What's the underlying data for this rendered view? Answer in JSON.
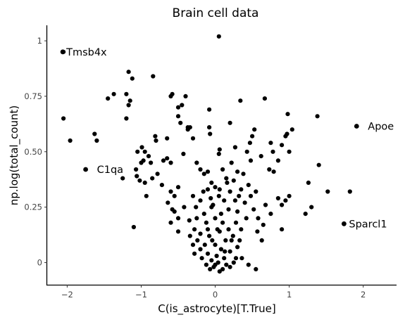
{
  "chart_data": {
    "type": "scatter",
    "title": "Brain cell data",
    "xlabel": "C(is_astrocyte)[T.True]",
    "ylabel": "np.log(total_count)",
    "xlim": [
      -2.27,
      2.45
    ],
    "ylim": [
      -0.1,
      1.07
    ],
    "x_ticks": [
      -2,
      -1,
      0,
      1,
      2
    ],
    "x_tick_labels": [
      "−2",
      "−1",
      "0",
      "1",
      "2"
    ],
    "y_ticks": [
      0,
      0.25,
      0.5,
      0.75,
      1
    ],
    "y_tick_labels": [
      "0",
      "0.25",
      "0.50",
      "0.75",
      "1"
    ],
    "grid": false,
    "series": [
      {
        "color": "#000000",
        "points": [
          [
            0.05,
            1.02
          ],
          [
            -2.05,
            0.95
          ],
          [
            -1.17,
            0.86
          ],
          [
            -1.12,
            0.83
          ],
          [
            -0.84,
            0.84
          ],
          [
            -1.37,
            0.76
          ],
          [
            -1.45,
            0.74
          ],
          [
            -1.2,
            0.76
          ],
          [
            -1.15,
            0.73
          ],
          [
            -1.17,
            0.71
          ],
          [
            -0.58,
            0.76
          ],
          [
            -0.6,
            0.75
          ],
          [
            -0.4,
            0.75
          ],
          [
            -0.45,
            0.71
          ],
          [
            -0.5,
            0.7
          ],
          [
            -0.5,
            0.66
          ],
          [
            -0.47,
            0.63
          ],
          [
            -0.37,
            0.61
          ],
          [
            -0.34,
            0.61
          ],
          [
            -1.2,
            0.65
          ],
          [
            -2.05,
            0.65
          ],
          [
            -0.81,
            0.57
          ],
          [
            -0.8,
            0.55
          ],
          [
            -0.65,
            0.56
          ],
          [
            -0.37,
            0.6
          ],
          [
            -0.3,
            0.56
          ],
          [
            -1.63,
            0.58
          ],
          [
            -1.6,
            0.55
          ],
          [
            -1.96,
            0.55
          ],
          [
            0.34,
            0.73
          ],
          [
            0.67,
            0.74
          ],
          [
            0.98,
            0.67
          ],
          [
            1.38,
            0.66
          ],
          [
            1.04,
            0.6
          ],
          [
            0.97,
            0.58
          ],
          [
            0.95,
            0.57
          ],
          [
            -0.08,
            0.69
          ],
          [
            -0.08,
            0.61
          ],
          [
            -0.07,
            0.58
          ],
          [
            0.2,
            0.63
          ],
          [
            0.53,
            0.6
          ],
          [
            0.5,
            0.57
          ],
          [
            0.47,
            0.54
          ],
          [
            0.27,
            0.52
          ],
          [
            0.75,
            0.54
          ],
          [
            0.9,
            0.53
          ],
          [
            0.78,
            0.5
          ],
          [
            1.0,
            0.5
          ],
          [
            1.4,
            0.44
          ],
          [
            -0.99,
            0.52
          ],
          [
            -0.95,
            0.5
          ],
          [
            -0.9,
            0.48
          ],
          [
            -1.05,
            0.5
          ],
          [
            -0.43,
            0.49
          ],
          [
            0.06,
            0.51
          ],
          [
            0.05,
            0.49
          ],
          [
            0.43,
            0.5
          ],
          [
            0.48,
            0.46
          ],
          [
            0.62,
            0.48
          ],
          [
            0.85,
            0.46
          ],
          [
            0.73,
            0.42
          ],
          [
            0.79,
            0.41
          ],
          [
            1.26,
            0.36
          ],
          [
            1.52,
            0.32
          ],
          [
            1.82,
            0.32
          ],
          [
            1.3,
            0.25
          ],
          [
            1.22,
            0.22
          ],
          [
            1.0,
            0.3
          ],
          [
            0.95,
            0.28
          ],
          [
            0.9,
            0.26
          ],
          [
            0.85,
            0.29
          ],
          [
            0.68,
            0.26
          ],
          [
            0.75,
            0.22
          ],
          [
            0.9,
            0.15
          ],
          [
            0.65,
            0.17
          ],
          [
            0.58,
            0.2
          ],
          [
            0.63,
            0.1
          ],
          [
            0.57,
            0.14
          ],
          [
            0.55,
            -0.03
          ],
          [
            0.45,
            -0.01
          ],
          [
            0.36,
            0.02
          ],
          [
            -0.97,
            0.46
          ],
          [
            -1.0,
            0.45
          ],
          [
            -0.87,
            0.45
          ],
          [
            -0.65,
            0.47
          ],
          [
            -0.6,
            0.45
          ],
          [
            -0.7,
            0.46
          ],
          [
            -1.07,
            0.42
          ],
          [
            -1.02,
            0.37
          ],
          [
            -0.95,
            0.36
          ],
          [
            -1.06,
            0.39
          ],
          [
            -1.25,
            0.38
          ],
          [
            -0.85,
            0.38
          ],
          [
            -0.78,
            0.4
          ],
          [
            -0.72,
            0.35
          ],
          [
            -0.5,
            0.34
          ],
          [
            -0.6,
            0.32
          ],
          [
            -0.55,
            0.3
          ],
          [
            -0.64,
            0.27
          ],
          [
            -0.58,
            0.24
          ],
          [
            -0.55,
            0.23
          ],
          [
            -0.5,
            0.2
          ],
          [
            -0.42,
            0.25
          ],
          [
            -0.35,
            0.19
          ],
          [
            -0.28,
            0.15
          ],
          [
            -0.34,
            0.12
          ],
          [
            -0.3,
            0.08
          ],
          [
            -0.93,
            0.3
          ],
          [
            -1.1,
            0.16
          ],
          [
            -0.6,
            0.18
          ],
          [
            -0.5,
            0.14
          ],
          [
            -0.25,
            0.45
          ],
          [
            -0.2,
            0.42
          ],
          [
            -0.15,
            0.4
          ],
          [
            -0.1,
            0.41
          ],
          [
            0.1,
            0.42
          ],
          [
            0.22,
            0.45
          ],
          [
            0.3,
            0.41
          ],
          [
            0.38,
            0.4
          ],
          [
            0.25,
            0.37
          ],
          [
            0.15,
            0.38
          ],
          [
            0.35,
            0.33
          ],
          [
            0.45,
            0.35
          ],
          [
            0.55,
            0.32
          ],
          [
            0.48,
            0.3
          ],
          [
            0.4,
            0.27
          ],
          [
            0.52,
            0.24
          ],
          [
            0.42,
            0.2
          ],
          [
            0.3,
            0.23
          ],
          [
            0.35,
            0.15
          ],
          [
            0.22,
            0.1
          ],
          [
            -0.05,
            0.36
          ],
          [
            -0.1,
            0.33
          ],
          [
            0.05,
            0.3
          ],
          [
            0.12,
            0.28
          ],
          [
            -0.2,
            0.28
          ],
          [
            -0.15,
            0.22
          ],
          [
            -0.05,
            0.25
          ],
          [
            0.18,
            0.24
          ],
          [
            0.28,
            0.18
          ],
          [
            -0.25,
            0.2
          ],
          [
            -0.2,
            0.13
          ],
          [
            -0.12,
            0.18
          ],
          [
            0.0,
            0.2
          ],
          [
            0.1,
            0.18
          ],
          [
            0.18,
            0.15
          ],
          [
            -0.08,
            0.12
          ],
          [
            0.06,
            0.14
          ],
          [
            0.14,
            0.1
          ],
          [
            -0.14,
            0.08
          ],
          [
            0.2,
            0.05
          ],
          [
            -0.1,
            0.04
          ],
          [
            0.0,
            0.08
          ],
          [
            0.08,
            0.06
          ],
          [
            0.12,
            0.02
          ],
          [
            -0.05,
            0.01
          ],
          [
            0.04,
            0.0
          ],
          [
            -0.02,
            -0.02
          ],
          [
            0.1,
            -0.03
          ],
          [
            -0.12,
            -0.01
          ],
          [
            0.15,
            -0.01
          ],
          [
            0.25,
            0.0
          ],
          [
            0.3,
            0.07
          ],
          [
            0.24,
            0.12
          ],
          [
            -0.18,
            0.02
          ],
          [
            0.02,
            0.03
          ],
          [
            -0.04,
            0.1
          ],
          [
            0.03,
            0.15
          ],
          [
            -0.1,
            0.15
          ],
          [
            0.08,
            0.22
          ],
          [
            -0.03,
            0.26
          ],
          [
            0.06,
            0.33
          ],
          [
            -0.16,
            0.32
          ],
          [
            0.2,
            0.32
          ],
          [
            0.27,
            0.28
          ],
          [
            -0.26,
            0.25
          ],
          [
            -0.3,
            0.3
          ],
          [
            0.32,
            0.3
          ],
          [
            0.16,
            0.36
          ],
          [
            -0.06,
            0.29
          ],
          [
            0.0,
            0.34
          ],
          [
            0.13,
            0.05
          ],
          [
            -0.07,
            -0.03
          ],
          [
            0.06,
            -0.04
          ],
          [
            0.2,
            -0.02
          ],
          [
            -0.2,
            0.06
          ],
          [
            -0.24,
            0.1
          ],
          [
            0.28,
            0.02
          ],
          [
            0.33,
            0.1
          ],
          [
            -0.28,
            0.04
          ],
          [
            0.0,
            -0.01
          ]
        ]
      }
    ],
    "annotations": [
      {
        "text": "Tmsb4x",
        "x": -2.06,
        "y": 0.95
      },
      {
        "text": "Apoe",
        "x": 1.91,
        "y": 0.615
      },
      {
        "text": "C1qa",
        "x": -1.75,
        "y": 0.42
      },
      {
        "text": "Sparcl1",
        "x": 1.74,
        "y": 0.175
      }
    ]
  }
}
